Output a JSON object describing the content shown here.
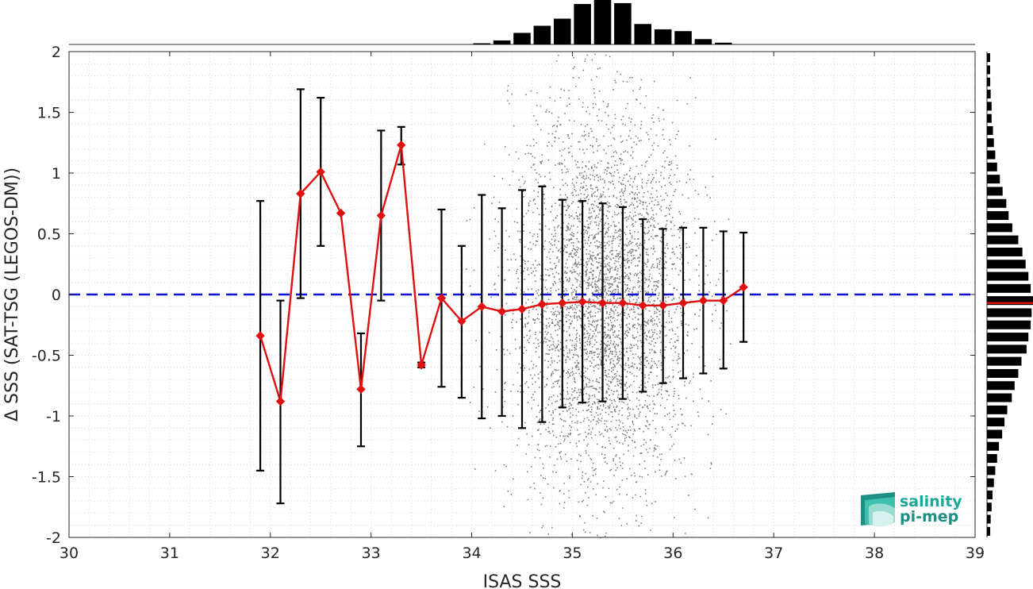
{
  "chart_data": {
    "type": "scatter",
    "xlabel": "ISAS SSS",
    "ylabel": "Δ SSS (SAT-TSG (LEGOS-DM))",
    "xlim": [
      30,
      39
    ],
    "ylim": [
      -2,
      2
    ],
    "x_ticks": [
      "30",
      "31",
      "32",
      "33",
      "34",
      "35",
      "36",
      "37",
      "38",
      "39"
    ],
    "y_ticks": [
      "-2",
      "-1.5",
      "-1",
      "-0.5",
      "0",
      "0.5",
      "1",
      "1.5",
      "2"
    ],
    "grid": "minor dotted",
    "zero_line": {
      "y": 0,
      "style": "dashed",
      "color": "#1010d0"
    },
    "scatter_color": "#7f7f7f",
    "scatter_cloud": {
      "x_range": [
        33.9,
        36.6
      ],
      "center_x": 35.3,
      "center_y": -0.07,
      "note": "dense cloud of individual match-ups"
    },
    "binned_series": {
      "color": "#e01010",
      "marker": "diamond",
      "points": [
        {
          "x": 31.9,
          "y": -0.34,
          "err_low": -1.45,
          "err_high": 0.77
        },
        {
          "x": 32.1,
          "y": -0.88,
          "err_low": -1.72,
          "err_high": -0.05
        },
        {
          "x": 32.3,
          "y": 0.83,
          "err_low": -0.03,
          "err_high": 1.69
        },
        {
          "x": 32.5,
          "y": 1.01,
          "err_low": 0.4,
          "err_high": 1.62
        },
        {
          "x": 32.7,
          "y": 0.67,
          "err_low": null,
          "err_high": null
        },
        {
          "x": 32.9,
          "y": -0.78,
          "err_low": -1.25,
          "err_high": -0.32
        },
        {
          "x": 33.1,
          "y": 0.65,
          "err_low": -0.05,
          "err_high": 1.35
        },
        {
          "x": 33.3,
          "y": 1.23,
          "err_low": 1.07,
          "err_high": 1.38
        },
        {
          "x": 33.5,
          "y": -0.58,
          "err_low": -0.6,
          "err_high": -0.56
        },
        {
          "x": 33.7,
          "y": -0.03,
          "err_low": -0.76,
          "err_high": 0.7
        },
        {
          "x": 33.9,
          "y": -0.22,
          "err_low": -0.85,
          "err_high": 0.4
        },
        {
          "x": 34.1,
          "y": -0.1,
          "err_low": -1.02,
          "err_high": 0.82
        },
        {
          "x": 34.3,
          "y": -0.14,
          "err_low": -1.0,
          "err_high": 0.71
        },
        {
          "x": 34.5,
          "y": -0.12,
          "err_low": -1.1,
          "err_high": 0.86
        },
        {
          "x": 34.7,
          "y": -0.08,
          "err_low": -1.05,
          "err_high": 0.89
        },
        {
          "x": 34.9,
          "y": -0.07,
          "err_low": -0.93,
          "err_high": 0.78
        },
        {
          "x": 35.1,
          "y": -0.06,
          "err_low": -0.89,
          "err_high": 0.77
        },
        {
          "x": 35.3,
          "y": -0.07,
          "err_low": -0.88,
          "err_high": 0.75
        },
        {
          "x": 35.5,
          "y": -0.07,
          "err_low": -0.86,
          "err_high": 0.72
        },
        {
          "x": 35.7,
          "y": -0.09,
          "err_low": -0.8,
          "err_high": 0.62
        },
        {
          "x": 35.9,
          "y": -0.09,
          "err_low": -0.73,
          "err_high": 0.54
        },
        {
          "x": 36.1,
          "y": -0.07,
          "err_low": -0.69,
          "err_high": 0.55
        },
        {
          "x": 36.3,
          "y": -0.05,
          "err_low": -0.65,
          "err_high": 0.55
        },
        {
          "x": 36.5,
          "y": -0.05,
          "err_low": -0.61,
          "err_high": 0.52
        },
        {
          "x": 36.7,
          "y": 0.06,
          "err_low": -0.39,
          "err_high": 0.51
        }
      ]
    },
    "top_histogram": {
      "description": "distribution of ISAS SSS",
      "bins": [
        {
          "x": 34.1,
          "count": 0.02
        },
        {
          "x": 34.3,
          "count": 0.09
        },
        {
          "x": 34.5,
          "count": 0.26
        },
        {
          "x": 34.7,
          "count": 0.42
        },
        {
          "x": 34.9,
          "count": 0.58
        },
        {
          "x": 35.1,
          "count": 0.91
        },
        {
          "x": 35.3,
          "count": 1.0
        },
        {
          "x": 35.5,
          "count": 0.93
        },
        {
          "x": 35.7,
          "count": 0.46
        },
        {
          "x": 35.9,
          "count": 0.34
        },
        {
          "x": 36.1,
          "count": 0.3
        },
        {
          "x": 36.3,
          "count": 0.12
        },
        {
          "x": 36.5,
          "count": 0.04
        }
      ]
    },
    "right_histogram": {
      "description": "distribution of Δ SSS",
      "median_line": {
        "y": -0.07,
        "color": "#e01010"
      },
      "bin_width": 0.1,
      "bins": [
        {
          "y": 1.95,
          "count": 0.04
        },
        {
          "y": 1.85,
          "count": 0.05
        },
        {
          "y": 1.75,
          "count": 0.07
        },
        {
          "y": 1.65,
          "count": 0.08
        },
        {
          "y": 1.55,
          "count": 0.1
        },
        {
          "y": 1.45,
          "count": 0.1
        },
        {
          "y": 1.35,
          "count": 0.13
        },
        {
          "y": 1.25,
          "count": 0.15
        },
        {
          "y": 1.15,
          "count": 0.18
        },
        {
          "y": 1.05,
          "count": 0.22
        },
        {
          "y": 0.95,
          "count": 0.28
        },
        {
          "y": 0.85,
          "count": 0.34
        },
        {
          "y": 0.75,
          "count": 0.42
        },
        {
          "y": 0.65,
          "count": 0.47
        },
        {
          "y": 0.55,
          "count": 0.55
        },
        {
          "y": 0.45,
          "count": 0.68
        },
        {
          "y": 0.35,
          "count": 0.77
        },
        {
          "y": 0.25,
          "count": 0.84
        },
        {
          "y": 0.15,
          "count": 0.9
        },
        {
          "y": 0.05,
          "count": 0.95
        },
        {
          "y": -0.05,
          "count": 1.0
        },
        {
          "y": -0.15,
          "count": 0.97
        },
        {
          "y": -0.25,
          "count": 0.95
        },
        {
          "y": -0.35,
          "count": 0.9
        },
        {
          "y": -0.45,
          "count": 0.86
        },
        {
          "y": -0.55,
          "count": 0.75
        },
        {
          "y": -0.65,
          "count": 0.68
        },
        {
          "y": -0.75,
          "count": 0.6
        },
        {
          "y": -0.85,
          "count": 0.54
        },
        {
          "y": -0.95,
          "count": 0.44
        },
        {
          "y": -1.05,
          "count": 0.38
        },
        {
          "y": -1.15,
          "count": 0.33
        },
        {
          "y": -1.25,
          "count": 0.26
        },
        {
          "y": -1.35,
          "count": 0.22
        },
        {
          "y": -1.45,
          "count": 0.18
        },
        {
          "y": -1.55,
          "count": 0.15
        },
        {
          "y": -1.65,
          "count": 0.12
        },
        {
          "y": -1.75,
          "count": 0.1
        },
        {
          "y": -1.85,
          "count": 0.08
        },
        {
          "y": -1.95,
          "count": 0.07
        }
      ]
    }
  },
  "logo": {
    "line1": "salinity",
    "line2": "pi-mep",
    "color": "#1aa89a"
  }
}
